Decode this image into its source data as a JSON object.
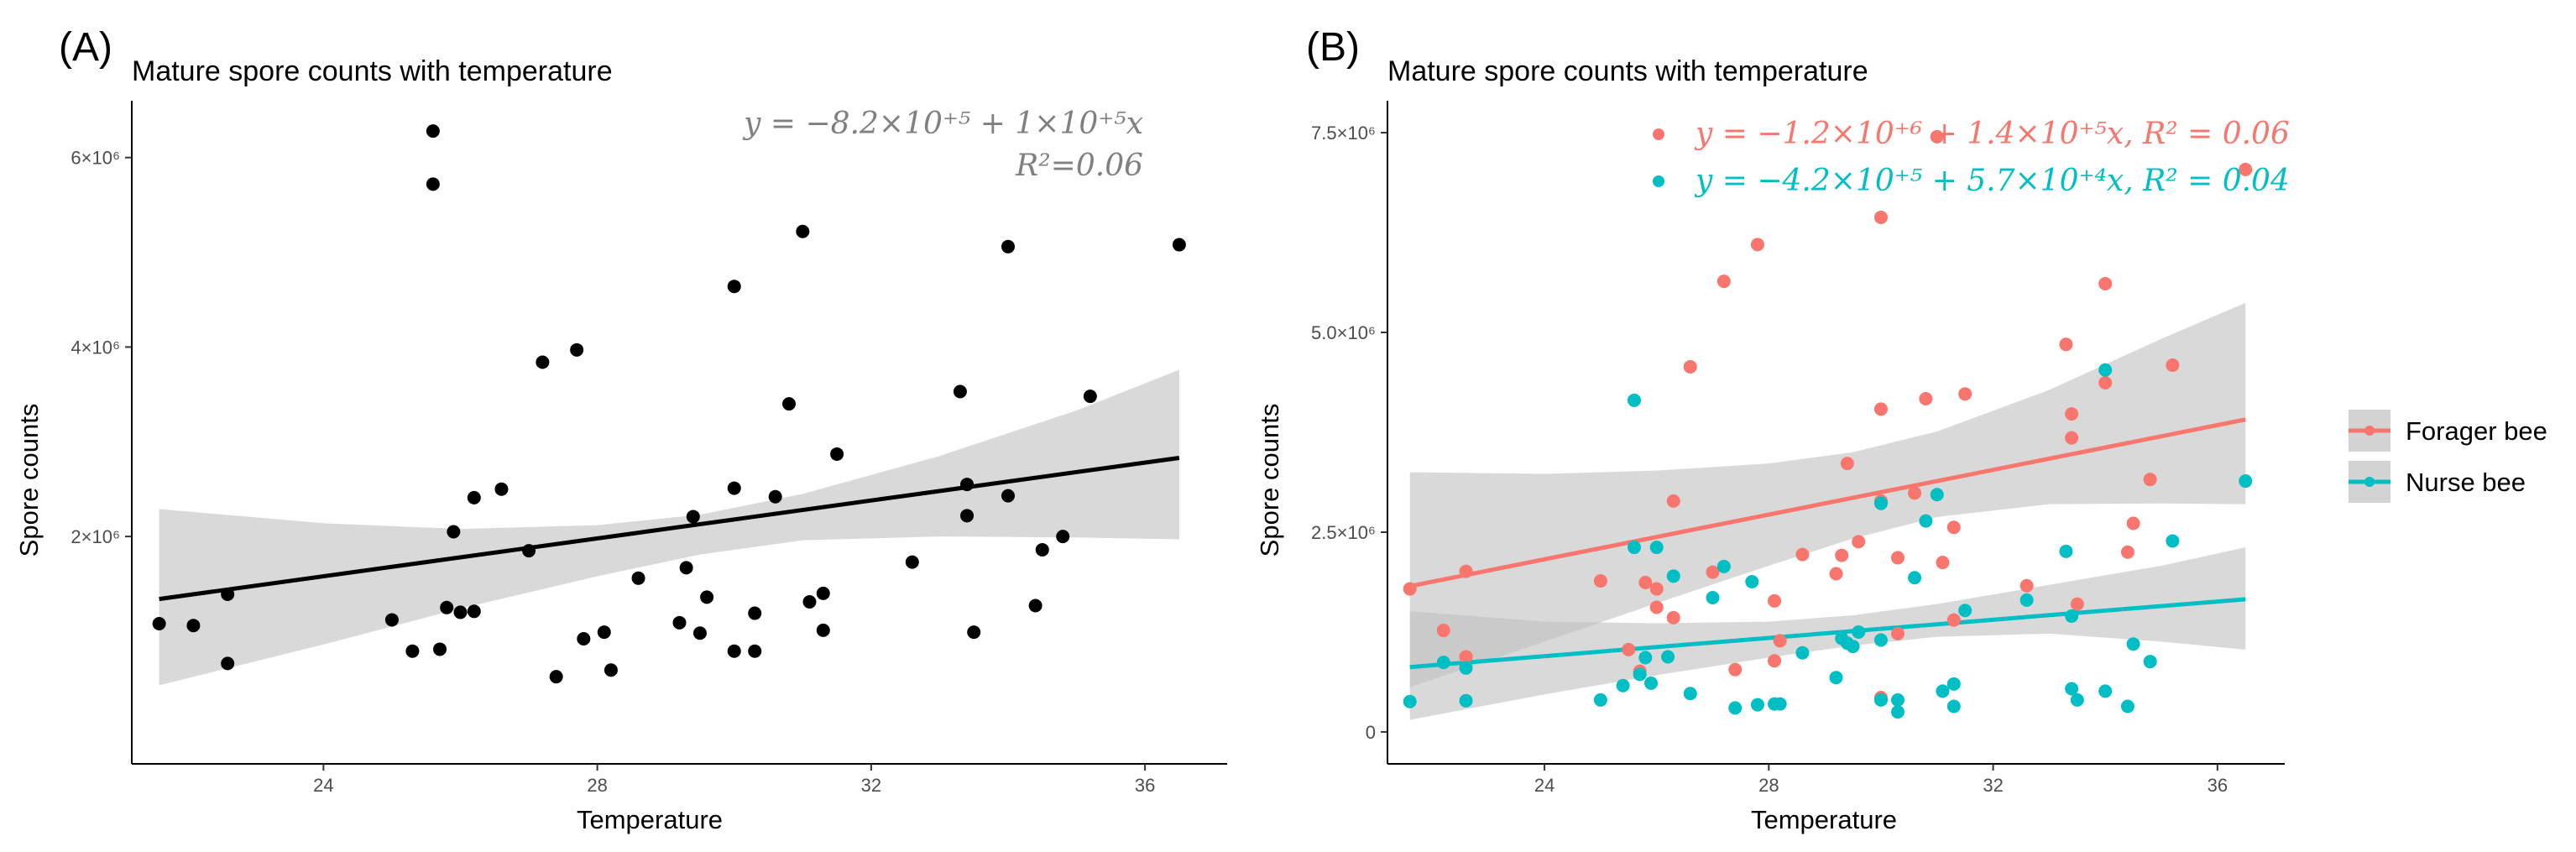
{
  "figure": {
    "panels": [
      "(A)",
      "(B)"
    ],
    "legend": {
      "items": [
        {
          "label": "Forager bee",
          "color": "#F8766D"
        },
        {
          "label": "Nurse bee",
          "color": "#00BFC4"
        }
      ]
    }
  },
  "chart_data": [
    {
      "type": "scatter",
      "panel": "(A)",
      "title": "Mature spore counts with temperature",
      "xlabel": "Temperature",
      "ylabel": "Spore counts",
      "xlim": [
        21.2,
        37.2
      ],
      "ylim": [
        -400000,
        6600000
      ],
      "xticks": [
        24,
        28,
        32,
        36
      ],
      "xtick_labels": [
        "24",
        "28",
        "32",
        "36"
      ],
      "yticks": [
        2000000,
        4000000,
        6000000
      ],
      "ytick_labels": [
        "2×10⁶",
        "4×10⁶",
        "6×10⁶"
      ],
      "grid": false,
      "equation_lines": [
        "y = −8.2×10⁺⁵ + 1×10⁺⁵x",
        "R²=0.06"
      ],
      "equation_color": "#808080",
      "series": [
        {
          "color": "#000000",
          "points": [
            [
              21.6,
              1080000
            ],
            [
              22.1,
              1060000
            ],
            [
              22.6,
              1390000
            ],
            [
              22.6,
              660000
            ],
            [
              25.0,
              1120000
            ],
            [
              25.3,
              790000
            ],
            [
              25.6,
              6280000
            ],
            [
              25.6,
              5720000
            ],
            [
              25.7,
              810000
            ],
            [
              25.8,
              1250000
            ],
            [
              25.9,
              2050000
            ],
            [
              26.0,
              1200000
            ],
            [
              26.2,
              1210000
            ],
            [
              26.2,
              2410000
            ],
            [
              26.6,
              2500000
            ],
            [
              27.0,
              1850000
            ],
            [
              27.2,
              3840000
            ],
            [
              27.4,
              520000
            ],
            [
              27.7,
              3970000
            ],
            [
              27.8,
              920000
            ],
            [
              28.1,
              990000
            ],
            [
              28.2,
              590000
            ],
            [
              28.6,
              1560000
            ],
            [
              29.2,
              1090000
            ],
            [
              29.3,
              1670000
            ],
            [
              29.4,
              2210000
            ],
            [
              29.5,
              980000
            ],
            [
              29.6,
              1360000
            ],
            [
              30.0,
              4640000
            ],
            [
              30.0,
              2510000
            ],
            [
              30.0,
              790000
            ],
            [
              30.3,
              1190000
            ],
            [
              30.3,
              790000
            ],
            [
              30.6,
              2420000
            ],
            [
              30.8,
              3400000
            ],
            [
              31.0,
              5220000
            ],
            [
              31.1,
              1310000
            ],
            [
              31.3,
              1400000
            ],
            [
              31.3,
              1010000
            ],
            [
              31.5,
              2870000
            ],
            [
              32.6,
              1730000
            ],
            [
              33.3,
              3530000
            ],
            [
              33.4,
              2550000
            ],
            [
              33.4,
              2220000
            ],
            [
              33.5,
              990000
            ],
            [
              34.0,
              5060000
            ],
            [
              34.0,
              2430000
            ],
            [
              34.4,
              1270000
            ],
            [
              34.5,
              1860000
            ],
            [
              34.8,
              2000000
            ],
            [
              35.2,
              3480000
            ],
            [
              36.5,
              5080000
            ]
          ],
          "fit": {
            "intercept": -820000,
            "slope": 100000,
            "x": [
              21.6,
              36.5
            ]
          },
          "band": {
            "x": [
              21.6,
              24,
              26,
              28,
              29.5,
              31,
              33,
              35,
              36.5
            ],
            "lower": [
              430000,
              860000,
              1240000,
              1580000,
              1810000,
              1960000,
              2000000,
              1990000,
              1970000
            ],
            "upper": [
              2290000,
              2140000,
              2080000,
              2120000,
              2230000,
              2450000,
              2850000,
              3330000,
              3760000
            ]
          }
        }
      ]
    },
    {
      "type": "scatter",
      "panel": "(B)",
      "title": "Mature spore counts with temperature",
      "xlabel": "Temperature",
      "ylabel": "Spore counts",
      "xlim": [
        21.2,
        37.2
      ],
      "ylim": [
        -400000,
        7900000
      ],
      "xticks": [
        24,
        28,
        32,
        36
      ],
      "xtick_labels": [
        "24",
        "28",
        "32",
        "36"
      ],
      "yticks": [
        0,
        2500000,
        5000000,
        7500000
      ],
      "ytick_labels": [
        "0",
        "2.5×10⁶",
        "5.0×10⁶",
        "7.5×10⁶"
      ],
      "grid": false,
      "legend_position": "right",
      "equation_lines": [
        "y = −1.2×10⁺⁶ + 1.4×10⁺⁵x, R² = 0.06",
        "y = −4.2×10⁺⁵ + 5.7×10⁺⁴x, R² = 0.04"
      ],
      "series": [
        {
          "name": "Forager bee",
          "color": "#F8766D",
          "points": [
            [
              21.6,
              1790000
            ],
            [
              22.2,
              1270000
            ],
            [
              22.6,
              2010000
            ],
            [
              22.6,
              940000
            ],
            [
              25.0,
              1890000
            ],
            [
              25.5,
              1030000
            ],
            [
              25.7,
              760000
            ],
            [
              25.8,
              1870000
            ],
            [
              26.0,
              1790000
            ],
            [
              26.0,
              1560000
            ],
            [
              26.3,
              1430000
            ],
            [
              26.3,
              2890000
            ],
            [
              26.6,
              4570000
            ],
            [
              27.0,
              2000000
            ],
            [
              27.2,
              5640000
            ],
            [
              27.4,
              780000
            ],
            [
              27.8,
              6100000
            ],
            [
              28.1,
              1640000
            ],
            [
              28.1,
              890000
            ],
            [
              28.2,
              1140000
            ],
            [
              28.6,
              2220000
            ],
            [
              29.2,
              1980000
            ],
            [
              29.3,
              2210000
            ],
            [
              29.4,
              3360000
            ],
            [
              29.6,
              2380000
            ],
            [
              30.0,
              6440000
            ],
            [
              30.0,
              4040000
            ],
            [
              30.0,
              2890000
            ],
            [
              30.0,
              430000
            ],
            [
              30.3,
              1230000
            ],
            [
              30.3,
              2180000
            ],
            [
              30.6,
              2990000
            ],
            [
              30.8,
              4170000
            ],
            [
              31.0,
              7450000
            ],
            [
              31.1,
              2120000
            ],
            [
              31.3,
              1400000
            ],
            [
              31.3,
              2560000
            ],
            [
              31.5,
              4230000
            ],
            [
              32.6,
              1830000
            ],
            [
              33.3,
              4850000
            ],
            [
              33.4,
              3980000
            ],
            [
              33.4,
              3680000
            ],
            [
              33.5,
              1600000
            ],
            [
              34.0,
              5610000
            ],
            [
              34.0,
              4370000
            ],
            [
              34.4,
              2250000
            ],
            [
              34.5,
              2610000
            ],
            [
              34.8,
              3160000
            ],
            [
              35.2,
              4590000
            ],
            [
              36.5,
              7040000
            ]
          ],
          "fit": {
            "intercept": -1200000,
            "slope": 140000,
            "x": [
              21.6,
              36.5
            ]
          },
          "band": {
            "x": [
              21.6,
              24,
              26,
              28,
              29.5,
              31,
              33,
              35,
              36.5
            ],
            "lower": [
              560000,
              1130000,
              1610000,
              2080000,
              2420000,
              2690000,
              2850000,
              2860000,
              2850000
            ],
            "upper": [
              3250000,
              3230000,
              3270000,
              3360000,
              3500000,
              3760000,
              4280000,
              4920000,
              5370000
            ]
          }
        },
        {
          "name": "Nurse bee",
          "color": "#00BFC4",
          "points": [
            [
              21.6,
              380000
            ],
            [
              22.2,
              870000
            ],
            [
              22.6,
              800000
            ],
            [
              22.6,
              390000
            ],
            [
              25.0,
              400000
            ],
            [
              25.4,
              580000
            ],
            [
              25.6,
              4150000
            ],
            [
              25.6,
              2310000
            ],
            [
              25.7,
              720000
            ],
            [
              25.8,
              930000
            ],
            [
              25.9,
              610000
            ],
            [
              26.0,
              2310000
            ],
            [
              26.2,
              940000
            ],
            [
              26.3,
              1950000
            ],
            [
              26.6,
              480000
            ],
            [
              27.0,
              1680000
            ],
            [
              27.2,
              2070000
            ],
            [
              27.4,
              300000
            ],
            [
              27.7,
              1880000
            ],
            [
              27.8,
              340000
            ],
            [
              28.1,
              350000
            ],
            [
              28.2,
              350000
            ],
            [
              28.6,
              990000
            ],
            [
              29.2,
              680000
            ],
            [
              29.3,
              1170000
            ],
            [
              29.4,
              1110000
            ],
            [
              29.5,
              1070000
            ],
            [
              29.6,
              1250000
            ],
            [
              30.0,
              2860000
            ],
            [
              30.0,
              1150000
            ],
            [
              30.0,
              400000
            ],
            [
              30.3,
              400000
            ],
            [
              30.3,
              250000
            ],
            [
              30.6,
              1930000
            ],
            [
              30.8,
              2640000
            ],
            [
              31.0,
              2970000
            ],
            [
              31.1,
              510000
            ],
            [
              31.3,
              600000
            ],
            [
              31.3,
              320000
            ],
            [
              31.5,
              1520000
            ],
            [
              32.6,
              1650000
            ],
            [
              33.3,
              2260000
            ],
            [
              33.4,
              1450000
            ],
            [
              33.4,
              540000
            ],
            [
              33.5,
              400000
            ],
            [
              34.0,
              4530000
            ],
            [
              34.0,
              510000
            ],
            [
              34.4,
              320000
            ],
            [
              34.5,
              1100000
            ],
            [
              34.8,
              880000
            ],
            [
              35.2,
              2390000
            ],
            [
              36.5,
              3140000
            ]
          ],
          "fit": {
            "intercept": -420000,
            "slope": 57000,
            "x": [
              21.6,
              36.5
            ]
          },
          "band": {
            "x": [
              21.6,
              24,
              26,
              28,
              29.5,
              31,
              33,
              35,
              36.5
            ],
            "lower": [
              150000,
              470000,
              710000,
              930000,
              1080000,
              1190000,
              1230000,
              1130000,
              1030000
            ],
            "upper": [
              1510000,
              1380000,
              1360000,
              1380000,
              1460000,
              1600000,
              1840000,
              2080000,
              2310000
            ]
          }
        }
      ]
    }
  ]
}
